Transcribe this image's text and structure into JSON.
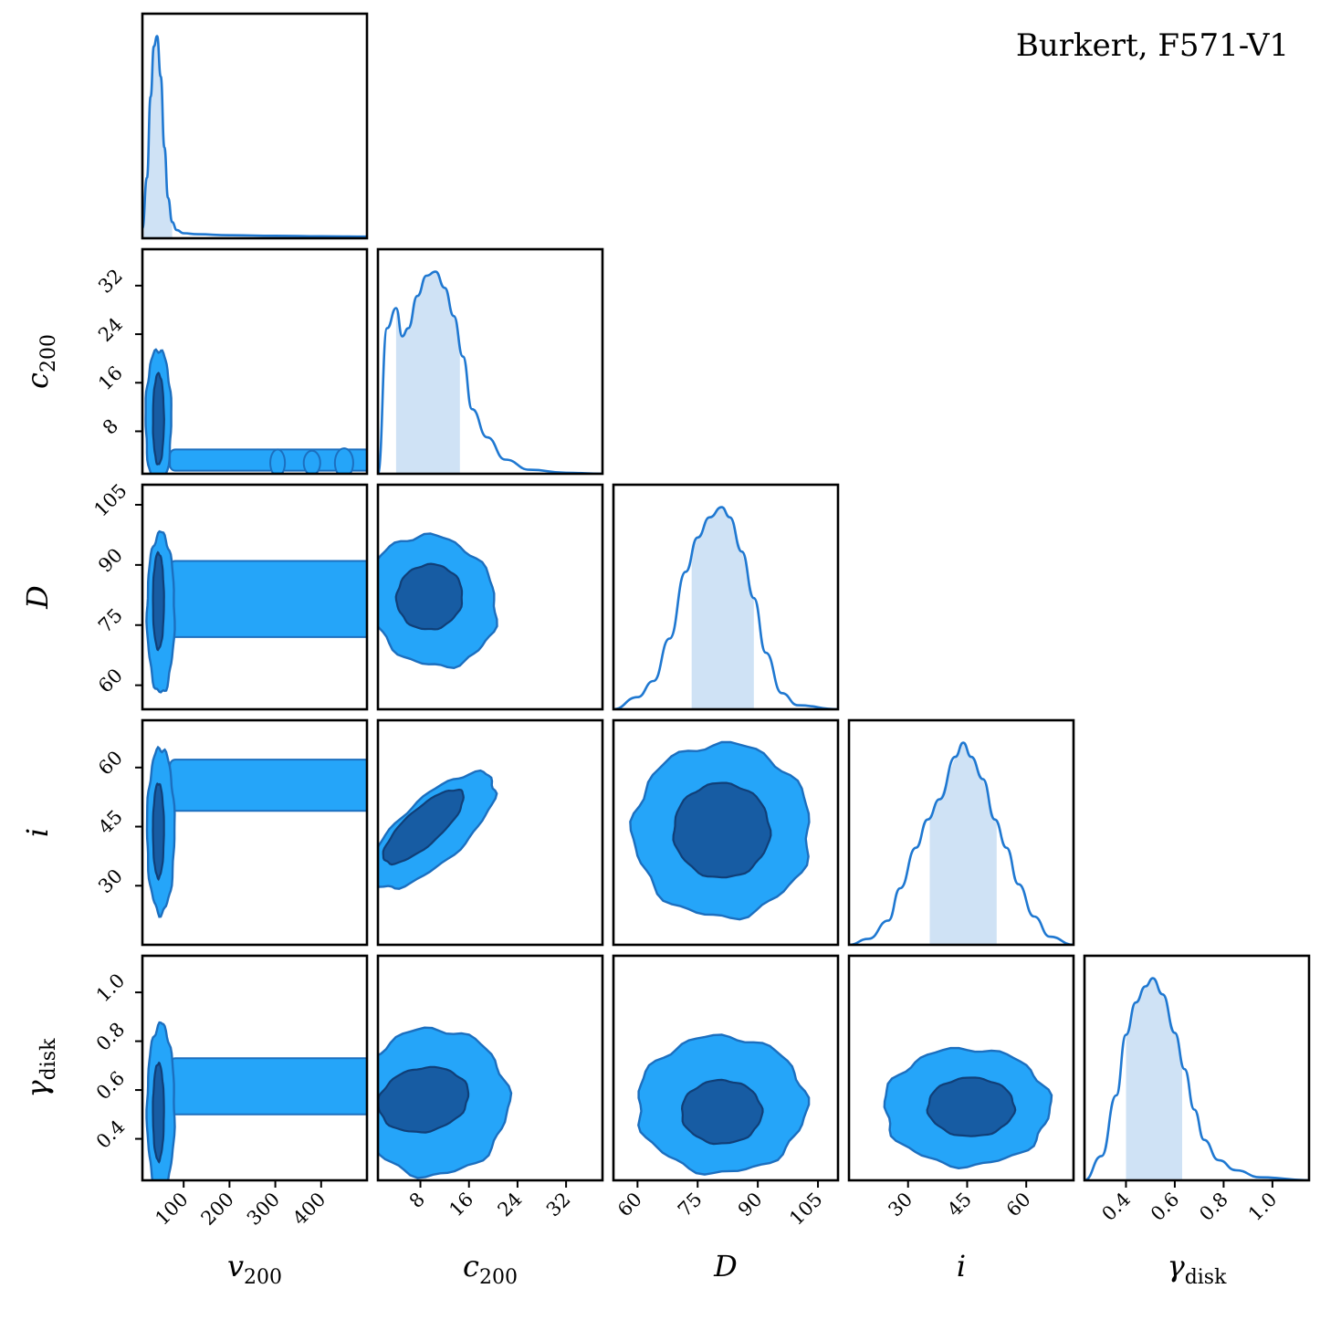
{
  "title": "Burkert, F571-V1",
  "colors": {
    "line": "#1f78d1",
    "hist_fill": "#cfe2f5",
    "inner_contour": "#175ca3",
    "outer_contour": "#25a5f9",
    "contour_edge": "#1c6fbf",
    "axes": "#000000"
  },
  "parameters": [
    {
      "key": "v200",
      "label_main": "v",
      "label_sub": "200",
      "ticks": [
        "100",
        "200",
        "300",
        "400"
      ],
      "range": [
        10,
        500
      ]
    },
    {
      "key": "c200",
      "label_main": "c",
      "label_sub": "200",
      "ticks": [
        "8",
        "16",
        "24",
        "32"
      ],
      "range": [
        1,
        38
      ]
    },
    {
      "key": "D",
      "label_main": "D",
      "label_sub": "",
      "ticks": [
        "60",
        "75",
        "90",
        "105"
      ],
      "range": [
        54,
        110
      ]
    },
    {
      "key": "i",
      "label_main": "i",
      "label_sub": "",
      "ticks": [
        "30",
        "45",
        "60"
      ],
      "range": [
        15,
        72
      ]
    },
    {
      "key": "gamma_disk",
      "label_main": "γ",
      "label_sub": "disk",
      "ticks": [
        "0.4",
        "0.6",
        "0.8",
        "1.0"
      ],
      "range": [
        0.23,
        1.15
      ]
    }
  ],
  "chart_data": {
    "type": "corner",
    "title": "Burkert, F571-V1",
    "marginals": [
      {
        "param": "v200",
        "x": [
          10,
          20,
          28,
          35,
          42,
          50,
          58,
          66,
          75,
          85,
          100,
          130,
          200,
          300,
          400,
          500
        ],
        "density": [
          0.05,
          0.3,
          0.7,
          0.95,
          1.0,
          0.8,
          0.45,
          0.2,
          0.08,
          0.04,
          0.025,
          0.02,
          0.015,
          0.012,
          0.01,
          0.008
        ],
        "interval": [
          13,
          75
        ]
      },
      {
        "param": "c200",
        "x": [
          1,
          2.5,
          4,
          5,
          6,
          7.5,
          9,
          10.5,
          12,
          13.5,
          15,
          16.5,
          19,
          22,
          26,
          32,
          38
        ],
        "density": [
          0.0,
          0.72,
          0.82,
          0.68,
          0.72,
          0.88,
          0.98,
          1.0,
          0.92,
          0.78,
          0.58,
          0.32,
          0.18,
          0.07,
          0.02,
          0.005,
          0.0
        ],
        "interval": [
          4,
          14.5
        ]
      },
      {
        "param": "D",
        "x": [
          54,
          60,
          64,
          68,
          72,
          75,
          78,
          81,
          83,
          86,
          89,
          92,
          96,
          100,
          110
        ],
        "density": [
          0.0,
          0.06,
          0.14,
          0.35,
          0.68,
          0.85,
          0.95,
          1.0,
          0.95,
          0.78,
          0.55,
          0.28,
          0.08,
          0.02,
          0.0
        ],
        "interval": [
          73.5,
          89
        ]
      },
      {
        "param": "i",
        "x": [
          15,
          20,
          25,
          28,
          32,
          35,
          38,
          42,
          44,
          46,
          49,
          52,
          55,
          58,
          62,
          66,
          72
        ],
        "density": [
          0.0,
          0.03,
          0.12,
          0.28,
          0.48,
          0.62,
          0.72,
          0.93,
          1.0,
          0.93,
          0.82,
          0.62,
          0.48,
          0.3,
          0.14,
          0.04,
          0.0
        ],
        "interval": [
          35.5,
          52.5
        ]
      },
      {
        "param": "gamma_disk",
        "x": [
          0.23,
          0.3,
          0.36,
          0.4,
          0.44,
          0.48,
          0.51,
          0.55,
          0.6,
          0.64,
          0.68,
          0.72,
          0.78,
          0.85,
          0.95,
          1.15
        ],
        "density": [
          0.0,
          0.12,
          0.42,
          0.72,
          0.88,
          0.96,
          1.0,
          0.92,
          0.73,
          0.55,
          0.35,
          0.2,
          0.1,
          0.05,
          0.015,
          0.0
        ],
        "interval": [
          0.4,
          0.63
        ]
      }
    ],
    "joint": [
      {
        "x": "v200",
        "y": "c200",
        "inner": {
          "center": [
            45,
            10
          ],
          "radius": [
            12,
            7.5
          ]
        },
        "outer": {
          "center": [
            45,
            10
          ],
          "radius": [
            28,
            11.5
          ]
        },
        "outer_tail": {
          "x": [
            70,
            500
          ],
          "y": [
            1.5,
            5
          ],
          "blobs": [
            [
              305,
              2.8,
              16,
              2.2
            ],
            [
              380,
              2.8,
              18,
              2.0
            ],
            [
              450,
              2.8,
              20,
              2.4
            ]
          ]
        }
      },
      {
        "x": "c200",
        "y": "D",
        "inner": {
          "center": [
            9.5,
            82
          ],
          "radius": [
            5.5,
            8
          ]
        },
        "outer": {
          "center": [
            10,
            81
          ],
          "radius": [
            10,
            17
          ]
        },
        "angle": -38
      },
      {
        "x": "v200",
        "y": "D",
        "inner": {
          "center": [
            45,
            81
          ],
          "radius": [
            12,
            12
          ]
        },
        "outer": {
          "center": [
            50,
            78
          ],
          "radius": [
            30,
            20
          ]
        },
        "outer_tail": {
          "x": [
            70,
            500
          ],
          "y": [
            72,
            91
          ],
          "blobs": []
        }
      },
      {
        "x": "v200",
        "y": "i",
        "inner": {
          "center": [
            45,
            44
          ],
          "radius": [
            12,
            12
          ]
        },
        "outer": {
          "center": [
            50,
            44
          ],
          "radius": [
            30,
            21
          ]
        },
        "outer_tail": {
          "x": [
            70,
            500
          ],
          "y": [
            49,
            62
          ],
          "blobs": []
        }
      },
      {
        "x": "c200",
        "y": "i",
        "inner": {
          "center": [
            8.5,
            45
          ],
          "radius": [
            8.5,
            4.5
          ]
        },
        "outer": {
          "center": [
            10,
            44
          ],
          "radius": [
            13,
            8
          ]
        },
        "angle": -42
      },
      {
        "x": "D",
        "y": "i",
        "inner": {
          "center": [
            81,
            44
          ],
          "radius": [
            12,
            12
          ]
        },
        "outer": {
          "center": [
            81,
            44
          ],
          "radius": [
            22,
            22
          ]
        }
      },
      {
        "x": "v200",
        "y": "gamma_disk",
        "inner": {
          "center": [
            45,
            0.51
          ],
          "radius": [
            12,
            0.2
          ]
        },
        "outer": {
          "center": [
            50,
            0.52
          ],
          "radius": [
            30,
            0.35
          ]
        },
        "outer_tail": {
          "x": [
            70,
            500
          ],
          "y": [
            0.5,
            0.73
          ],
          "blobs": []
        }
      },
      {
        "x": "c200",
        "y": "gamma_disk",
        "inner": {
          "center": [
            8.5,
            0.56
          ],
          "radius": [
            7.5,
            0.13
          ]
        },
        "outer": {
          "center": [
            10,
            0.55
          ],
          "radius": [
            12.5,
            0.3
          ]
        },
        "angle": -12
      },
      {
        "x": "D",
        "y": "gamma_disk",
        "inner": {
          "center": [
            81,
            0.51
          ],
          "radius": [
            10,
            0.13
          ]
        },
        "outer": {
          "center": [
            81,
            0.54
          ],
          "radius": [
            21,
            0.28
          ]
        }
      },
      {
        "x": "i",
        "y": "gamma_disk",
        "inner": {
          "center": [
            46,
            0.53
          ],
          "radius": [
            11,
            0.12
          ]
        },
        "outer": {
          "center": [
            45,
            0.53
          ],
          "radius": [
            21,
            0.24
          ]
        }
      }
    ]
  }
}
